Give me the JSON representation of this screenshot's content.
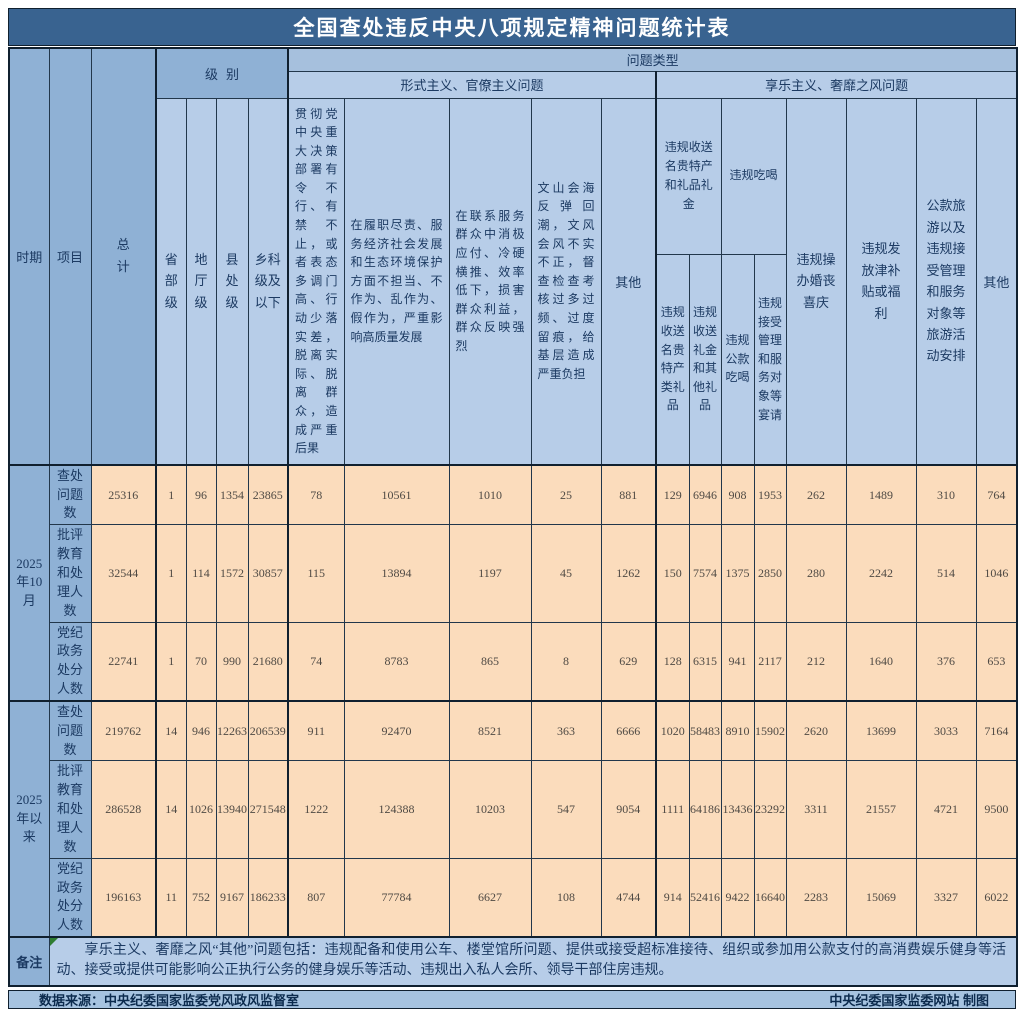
{
  "title": "全国查处违反中央八项规定精神问题统计表",
  "header": {
    "period": "时期",
    "item": "项目",
    "total": "总计",
    "problem_type": "问题类型",
    "level": {
      "label": "级别",
      "columns": [
        "省部级",
        "地厅级",
        "县处级",
        "乡科级及以下"
      ]
    },
    "formalism": {
      "label": "形式主义、官僚主义问题",
      "columns": [
        "贯彻党中央重大决策部署有令不行、有禁不止，或者表态多调门高、行动少落实差，脱离实际、脱离群众，造成严重后果",
        "在履职尽责、服务经济社会发展和生态环境保护方面不担当、不作为、乱作为、假作为，严重影响高质量发展",
        "在联系服务群众中消极应付、冷硬横推、效率低下，损害群众利益，群众反映强烈",
        "文山会海反弹回潮，文风会风不实不正，督查检查考核过多过频、过度留痕，给基层造成严重负担",
        "其他"
      ]
    },
    "hedonism": {
      "label": "享乐主义、奢靡之风问题",
      "gifts_group": {
        "label": "违规收送名贵特产和礼品礼金",
        "columns": [
          "违规收送名贵特产类礼品",
          "违规收送礼金和其他礼品"
        ]
      },
      "dining_group": {
        "label": "违规吃喝",
        "columns": [
          "违规公款吃喝",
          "违规接受管理和服务对象等宴请"
        ]
      },
      "columns": [
        "违规操办婚丧喜庆",
        "违规发放津补贴或福利",
        "公款旅游以及违规接受管理和服务对象等旅游活动安排",
        "其他"
      ]
    }
  },
  "rows": [
    {
      "period": "2025年10月",
      "items": [
        {
          "label": "查处问题数",
          "values": [
            25316,
            1,
            96,
            1354,
            23865,
            78,
            10561,
            1010,
            25,
            881,
            129,
            6946,
            908,
            1953,
            262,
            1489,
            310,
            764
          ]
        },
        {
          "label": "批评教育和处理人数",
          "values": [
            32544,
            1,
            114,
            1572,
            30857,
            115,
            13894,
            1197,
            45,
            1262,
            150,
            7574,
            1375,
            2850,
            280,
            2242,
            514,
            1046
          ]
        },
        {
          "label": "党纪政务处分人数",
          "values": [
            22741,
            1,
            70,
            990,
            21680,
            74,
            8783,
            865,
            8,
            629,
            128,
            6315,
            941,
            2117,
            212,
            1640,
            376,
            653
          ]
        }
      ]
    },
    {
      "period": "2025年以来",
      "items": [
        {
          "label": "查处问题数",
          "values": [
            219762,
            14,
            946,
            12263,
            206539,
            911,
            92470,
            8521,
            363,
            6666,
            1020,
            58483,
            8910,
            15902,
            2620,
            13699,
            3033,
            7164
          ]
        },
        {
          "label": "批评教育和处理人数",
          "values": [
            286528,
            14,
            1026,
            13940,
            271548,
            1222,
            124388,
            10203,
            547,
            9054,
            1111,
            64186,
            13436,
            23292,
            3311,
            21557,
            4721,
            9500
          ]
        },
        {
          "label": "党纪政务处分人数",
          "values": [
            196163,
            11,
            752,
            9167,
            186233,
            807,
            77784,
            6627,
            108,
            4744,
            914,
            52416,
            9422,
            16640,
            2283,
            15069,
            3327,
            6022
          ]
        }
      ]
    }
  ],
  "note": {
    "label": "备注",
    "text": "享乐主义、奢靡之风“其他”问题包括：违规配备和使用公车、楼堂馆所问题、提供或接受超标准接待、组织或参加用公款支付的高消费娱乐健身等活动、接受或提供可能影响公正执行公务的健身娱乐等活动、违规出入私人会所、领导干部住房违规。"
  },
  "footer": {
    "source": "数据来源：中央纪委国家监委党风政风监督室",
    "credit": "中央纪委国家监委网站 制图"
  },
  "colors": {
    "title_bar": "#396390",
    "header_dark": "#8FB1D5",
    "header_mid": "#A6C0DD",
    "header_light": "#B7CDE8",
    "data_cell": "#FBDCBC",
    "footer_bar": "#A6C3E0",
    "border": "#22374B",
    "title_text": "#FFFFFF",
    "header_text": "#1C3A62",
    "number_text": "#4F4A44"
  }
}
